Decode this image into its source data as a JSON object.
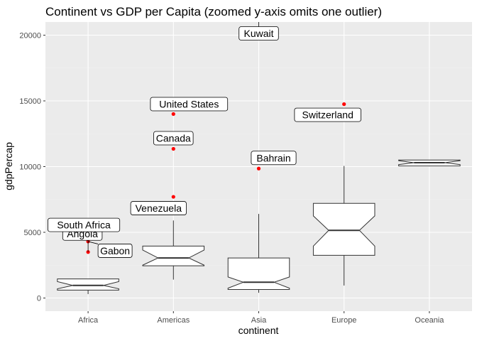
{
  "chart_data": {
    "type": "boxplot",
    "title": "Continent vs GDP per Capita (zoomed y-axis omits one outlier)",
    "xlabel": "continent",
    "ylabel": "gdpPercap",
    "categories": [
      "Africa",
      "Americas",
      "Asia",
      "Europe",
      "Oceania"
    ],
    "ylim": [
      -1000,
      21000
    ],
    "y_ticks": [
      0,
      5000,
      10000,
      15000,
      20000
    ],
    "y_tick_labels": [
      "0",
      "5000",
      "10000",
      "15000",
      "20000"
    ],
    "notched": true,
    "grid": true,
    "boxes": [
      {
        "category": "Africa",
        "whisker_low": 300,
        "q1": 600,
        "median": 960,
        "q3": 1450,
        "whisker_high": 1450,
        "notch_low": 700,
        "notch_high": 1250
      },
      {
        "category": "Americas",
        "whisker_low": 1400,
        "q1": 2450,
        "median": 3050,
        "q3": 3950,
        "whisker_high": 5900,
        "notch_low": 2500,
        "notch_high": 3650
      },
      {
        "category": "Asia",
        "whisker_low": 400,
        "q1": 650,
        "median": 1200,
        "q3": 3050,
        "whisker_high": 6400,
        "notch_low": 750,
        "notch_high": 1600
      },
      {
        "category": "Europe",
        "whisker_low": 950,
        "q1": 3250,
        "median": 5150,
        "q3": 7200,
        "whisker_high": 10050,
        "notch_low": 3950,
        "notch_high": 6250
      },
      {
        "category": "Oceania",
        "whisker_low": 10050,
        "q1": 10050,
        "median": 10300,
        "q3": 10500,
        "whisker_high": 10500,
        "notch_low": 10150,
        "notch_high": 10450
      }
    ],
    "outliers": [
      {
        "category": "Africa",
        "y": 3500,
        "label": "Angola"
      },
      {
        "category": "Africa",
        "y": 4300,
        "label": "Gabon"
      },
      {
        "category": "Africa",
        "y": 4750,
        "label": "South Africa"
      },
      {
        "category": "Americas",
        "y": 7700,
        "label": "Venezuela"
      },
      {
        "category": "Americas",
        "y": 11350,
        "label": "Canada"
      },
      {
        "category": "Americas",
        "y": 14000,
        "label": "United States"
      },
      {
        "category": "Asia",
        "y": 9850,
        "label": "Bahrain"
      },
      {
        "category": "Europe",
        "y": 14750,
        "label": "Switzerland"
      }
    ],
    "offscale_labels": [
      {
        "category": "Asia",
        "label": "Kuwait"
      }
    ],
    "colors": {
      "panel": "#ebebeb",
      "grid_major": "#ffffff",
      "grid_minor": "#f2f2f2",
      "box_fill": "#ffffff",
      "box_line": "#333333",
      "outlier": "#ff0000",
      "tick_text": "#4d4d4d"
    }
  }
}
